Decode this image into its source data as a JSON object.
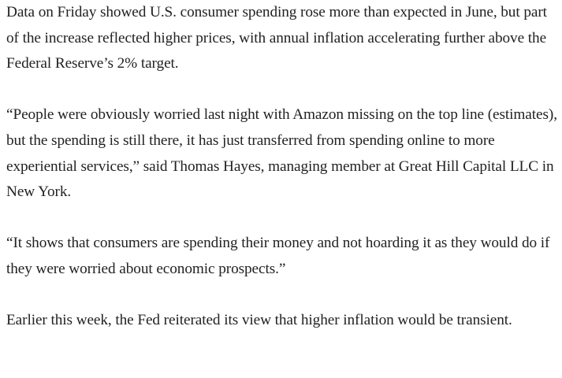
{
  "article": {
    "paragraphs": [
      "Data on Friday showed U.S. consumer spending rose more than expected in June, but part of the increase reflected higher prices, with annual inflation accelerating further above the Federal Reserve’s 2% target.",
      "“People were obviously worried last night with Amazon missing on the top line (estimates), but the spending is still there, it has just transferred from spending online to more experiential services,” said Thomas Hayes, managing member at Great Hill Capital LLC in New York.",
      "“It shows that consumers are spending their money and not hoarding it as they would do if they were worried about economic prospects.”",
      "Earlier this week, the Fed reiterated its view that higher inflation would be transient."
    ]
  }
}
